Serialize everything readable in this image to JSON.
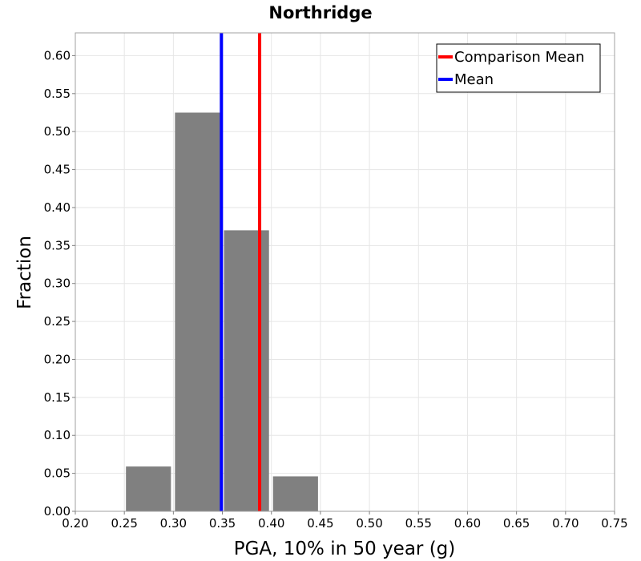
{
  "chart_data": {
    "type": "bar",
    "title": "Northridge",
    "xlabel": "PGA, 10% in 50 year (g)",
    "ylabel": "Fraction",
    "xlim": [
      0.2,
      0.75
    ],
    "ylim": [
      0.0,
      0.63
    ],
    "xticks": [
      "0.20",
      "0.25",
      "0.30",
      "0.35",
      "0.40",
      "0.45",
      "0.50",
      "0.55",
      "0.60",
      "0.65",
      "0.70",
      "0.75"
    ],
    "yticks": [
      "0.00",
      "0.05",
      "0.10",
      "0.15",
      "0.20",
      "0.25",
      "0.30",
      "0.35",
      "0.40",
      "0.45",
      "0.50",
      "0.55",
      "0.60"
    ],
    "bin_width": 0.05,
    "bins": [
      {
        "start": 0.25,
        "end": 0.3,
        "value": 0.059
      },
      {
        "start": 0.3,
        "end": 0.35,
        "value": 0.525
      },
      {
        "start": 0.35,
        "end": 0.4,
        "value": 0.37
      },
      {
        "start": 0.4,
        "end": 0.45,
        "value": 0.046
      }
    ],
    "bar_color": "#808080",
    "vertical_lines": [
      {
        "name": "Comparison Mean",
        "x": 0.388,
        "color": "#ff0000"
      },
      {
        "name": "Mean",
        "x": 0.349,
        "color": "#0000ff"
      }
    ],
    "legend": {
      "placement": "top-right",
      "entries": [
        {
          "label": "Comparison Mean",
          "color": "#ff0000"
        },
        {
          "label": "Mean",
          "color": "#0000ff"
        }
      ]
    },
    "grid": true
  }
}
